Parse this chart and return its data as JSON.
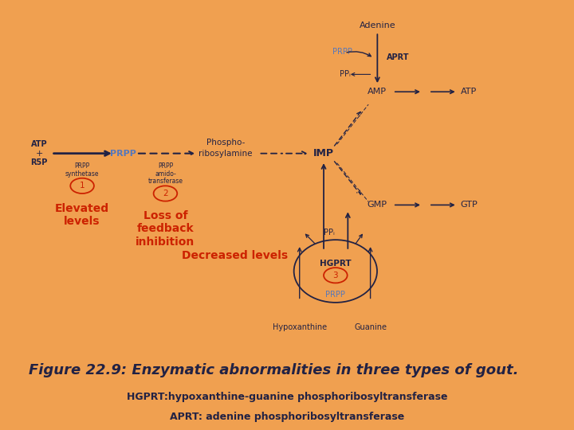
{
  "bg_color": "#F0A050",
  "panel_color": "#FFFFFF",
  "title_text": "Figure 22.9: Enzymatic abnormalities in three types of gout.",
  "subtitle1": "HGPRT:hypoxanthine-guanine phosphoribosyltransferase",
  "subtitle2": "APRT: adenine phosphoribosyltransferase",
  "title_fontsize": 13,
  "subtitle_fontsize": 9,
  "red_label1": "Elevated\nlevels",
  "red_label2": "Loss of\nfeedback\ninhibition",
  "red_label3": "Decreased levels",
  "red_color": "#CC2200",
  "blue_color": "#5577BB",
  "dark_color": "#222244",
  "circle_color": "#CC2200"
}
